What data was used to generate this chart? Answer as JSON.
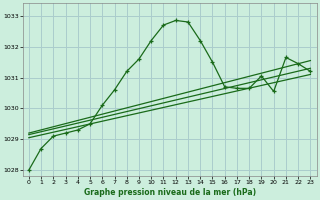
{
  "xlabel": "Graphe pression niveau de la mer (hPa)",
  "bg_color": "#cceedd",
  "grid_color": "#aacccc",
  "line_color": "#1a6b1a",
  "ylim": [
    1027.8,
    1033.4
  ],
  "xlim": [
    -0.5,
    23.5
  ],
  "yticks": [
    1028,
    1029,
    1030,
    1031,
    1032,
    1033
  ],
  "xticks": [
    0,
    1,
    2,
    3,
    4,
    5,
    6,
    7,
    8,
    9,
    10,
    11,
    12,
    13,
    14,
    15,
    16,
    17,
    18,
    19,
    20,
    21,
    22,
    23
  ],
  "series1": [
    1028.0,
    1028.7,
    1029.1,
    1029.2,
    1029.3,
    1029.5,
    1030.1,
    1030.6,
    1031.2,
    1031.6,
    1032.2,
    1032.7,
    1032.85,
    1032.8,
    1032.2,
    1031.5,
    1030.7,
    1030.65,
    1030.65,
    1031.05,
    1030.55,
    1031.65,
    1031.45,
    1031.2
  ],
  "series2_x": [
    0,
    23
  ],
  "series2_y": [
    1029.2,
    1031.55
  ],
  "series3_x": [
    0,
    23
  ],
  "series3_y": [
    1029.15,
    1031.3
  ],
  "series4_x": [
    0,
    23
  ],
  "series4_y": [
    1029.05,
    1031.1
  ]
}
